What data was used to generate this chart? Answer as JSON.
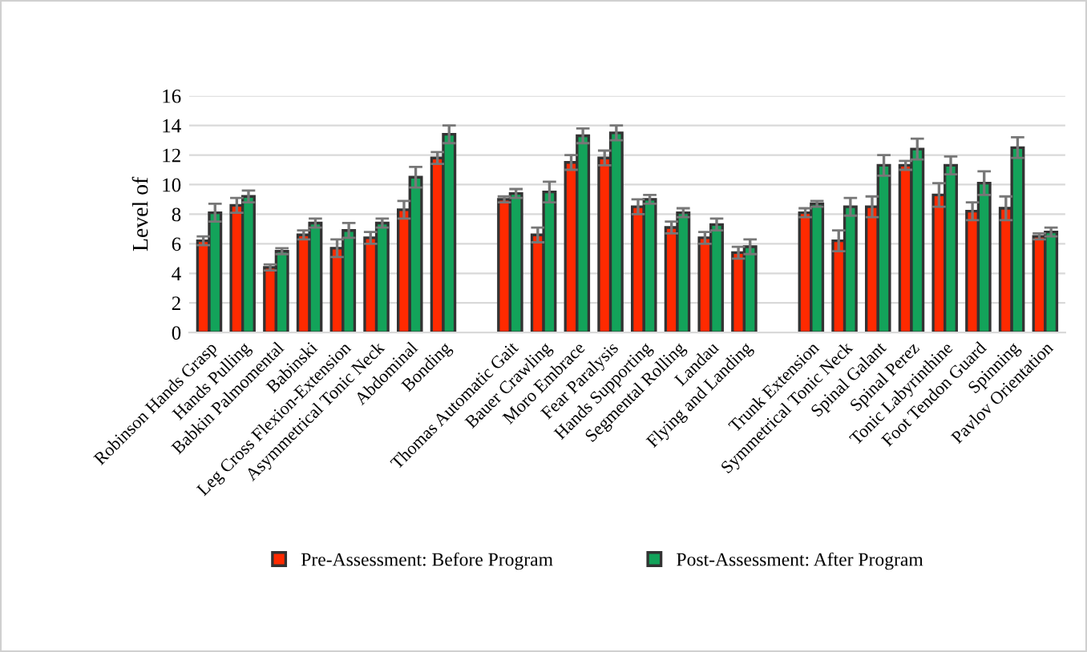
{
  "chart_data": {
    "type": "bar",
    "ylabel": "Level of",
    "categories": [
      "Robinson Hands Grasp",
      "Hands Pulling",
      "Babkin Palmomental",
      "Babinski",
      "Leg Cross Flexion-Extension",
      "Asymmetrical Tonic Neck",
      "Abdominal",
      "Bonding",
      null,
      "Thomas Automatic Gait",
      "Bauer Crawling",
      "Moro Embrace",
      "Fear Paralysis",
      "Hands Supporting",
      "Segmental Rolling",
      "Landau",
      "Flying and Landing",
      null,
      "Trunk Extension",
      "Symmetrical Tonic Neck",
      "Spinal Galant",
      "Spinal Perez",
      "Tonic Labyrinthine",
      "Foot Tendon Guard",
      "Spinning",
      "Pavlov Orientation"
    ],
    "series": [
      {
        "name": "Pre-Assessment: Before Program",
        "color": "#ff2a00",
        "values": [
          6.2,
          8.6,
          4.4,
          6.6,
          5.7,
          6.4,
          8.3,
          11.8,
          null,
          9.0,
          6.6,
          11.5,
          11.8,
          8.5,
          7.1,
          6.4,
          5.4,
          null,
          8.1,
          6.2,
          8.5,
          11.3,
          9.3,
          8.2,
          8.4,
          6.5
        ],
        "errors": [
          0.3,
          0.5,
          0.2,
          0.3,
          0.6,
          0.4,
          0.6,
          0.4,
          null,
          0.2,
          0.5,
          0.5,
          0.5,
          0.5,
          0.4,
          0.4,
          0.4,
          null,
          0.3,
          0.7,
          0.7,
          0.3,
          0.8,
          0.6,
          0.8,
          0.2
        ]
      },
      {
        "name": "Post-Assessment: After Program",
        "color": "#13a35a",
        "values": [
          8.1,
          9.2,
          5.5,
          7.4,
          6.9,
          7.4,
          10.5,
          13.4,
          null,
          9.4,
          9.5,
          13.3,
          13.5,
          9.0,
          8.1,
          7.3,
          5.8,
          null,
          8.7,
          8.5,
          11.3,
          12.4,
          11.3,
          10.1,
          12.5,
          6.8
        ],
        "errors": [
          0.6,
          0.4,
          0.2,
          0.3,
          0.5,
          0.3,
          0.7,
          0.6,
          null,
          0.3,
          0.7,
          0.5,
          0.5,
          0.3,
          0.3,
          0.4,
          0.5,
          null,
          0.2,
          0.6,
          0.7,
          0.7,
          0.6,
          0.8,
          0.7,
          0.3
        ]
      }
    ],
    "ylim": [
      0,
      16
    ],
    "yticks": [
      0,
      2,
      4,
      6,
      8,
      10,
      12,
      14,
      16
    ],
    "grid": "y",
    "legend": "bottom"
  }
}
